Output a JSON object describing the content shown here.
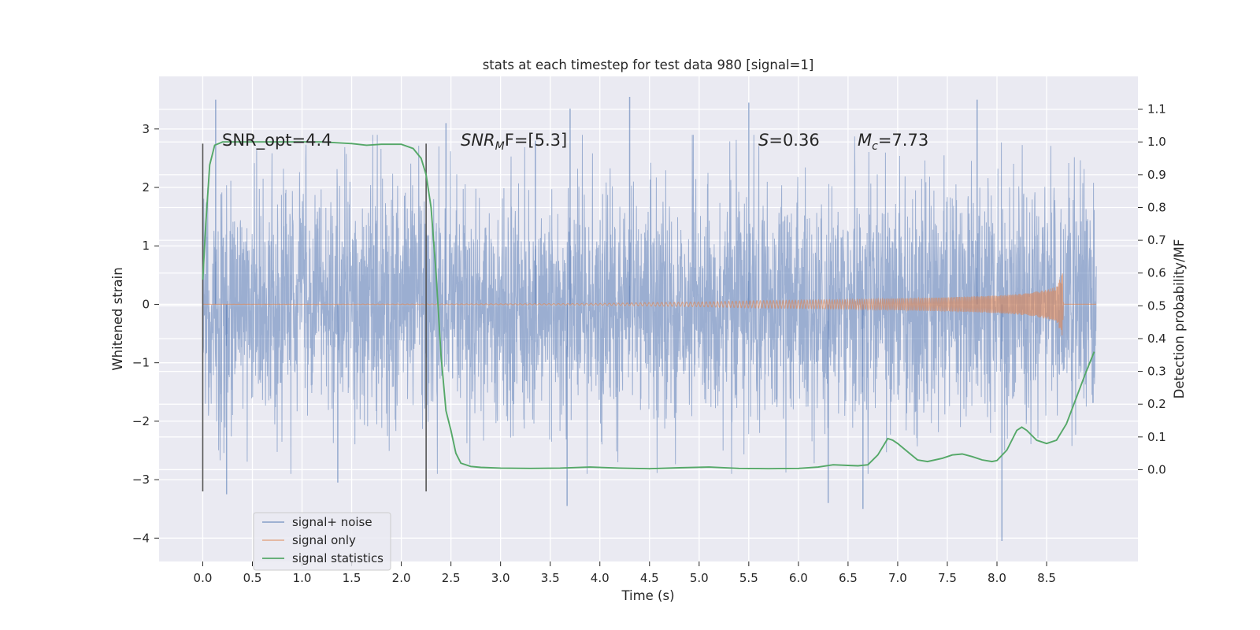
{
  "chart_data": {
    "type": "line",
    "title": "stats at each timestep for test data 980 [signal=1]",
    "xlabel": "Time (s)",
    "ylabel": "Whitened strain",
    "ylabel_right": "Detection probability/MF",
    "xlim": [
      -0.44,
      9.42
    ],
    "ylim": [
      -4.4,
      3.9
    ],
    "ylim_right": [
      -0.28,
      1.2
    ],
    "x_ticks": [
      0.0,
      0.5,
      1.0,
      1.5,
      2.0,
      2.5,
      3.0,
      3.5,
      4.0,
      4.5,
      5.0,
      5.5,
      6.0,
      6.5,
      7.0,
      7.5,
      8.0,
      8.5
    ],
    "x_tick_labels": [
      "0.0",
      "0.5",
      "1.0",
      "1.5",
      "2.0",
      "2.5",
      "3.0",
      "3.5",
      "4.0",
      "4.5",
      "5.0",
      "5.5",
      "6.0",
      "6.5",
      "7.0",
      "7.5",
      "8.0",
      "8.5"
    ],
    "y_ticks": [
      3,
      2,
      1,
      0,
      -1,
      -2,
      -3,
      -4
    ],
    "y_tick_labels": [
      "3",
      "2",
      "1",
      "0",
      "−1",
      "−2",
      "−3",
      "−4"
    ],
    "y_right_ticks": [
      1.1,
      1.0,
      0.9,
      0.8,
      0.7,
      0.6,
      0.5,
      0.4,
      0.3,
      0.2,
      0.1,
      0.0
    ],
    "y_right_tick_labels": [
      "1.1",
      "1.0",
      "0.9",
      "0.8",
      "0.7",
      "0.6",
      "0.5",
      "0.4",
      "0.3",
      "0.2",
      "0.1",
      "0.0"
    ],
    "grid": true,
    "legend_position": "lower-left",
    "annotations": {
      "snr_opt": "SNR_opt=4.4",
      "snr_mf_sym": "SNR",
      "snr_mf_sub": "M",
      "snr_mf_rest": "F=[5.3]",
      "s_sym": "S",
      "s_rest": "=0.36",
      "mc_sym": "M",
      "mc_sub": "c",
      "mc_rest": "=7.73"
    },
    "vertical_markers": [
      {
        "x": 0.0,
        "y_range": [
          -3.2,
          2.75
        ]
      },
      {
        "x": 2.25,
        "y_range": [
          -3.2,
          2.75
        ]
      }
    ],
    "series": [
      {
        "name": "signal+ noise",
        "color": "#4c72b0",
        "axis": "left",
        "x_range": [
          0.0,
          9.0
        ],
        "typical_amplitude": 1.25,
        "y_range": [
          -4.05,
          3.55
        ],
        "notable_spikes": [
          {
            "x": 0.13,
            "y": 3.5
          },
          {
            "x": 0.24,
            "y": -3.25
          },
          {
            "x": 1.36,
            "y": -3.05
          },
          {
            "x": 2.45,
            "y": 3.1
          },
          {
            "x": 3.35,
            "y": 2.8
          },
          {
            "x": 3.7,
            "y": 3.35
          },
          {
            "x": 3.67,
            "y": -3.45
          },
          {
            "x": 4.3,
            "y": 3.55
          },
          {
            "x": 5.5,
            "y": 3.45
          },
          {
            "x": 6.3,
            "y": -3.4
          },
          {
            "x": 6.65,
            "y": -3.5
          },
          {
            "x": 7.8,
            "y": 3.5
          },
          {
            "x": 8.05,
            "y": -4.05
          }
        ]
      },
      {
        "name": "signal only",
        "color": "#dd8452",
        "axis": "left",
        "x": [
          0.0,
          2.0,
          3.0,
          4.0,
          4.5,
          5.0,
          5.5,
          6.0,
          6.5,
          7.0,
          7.5,
          8.0,
          8.3,
          8.5,
          8.6,
          8.66,
          8.67,
          9.0
        ],
        "envelope": [
          0.0,
          0.005,
          0.008,
          0.015,
          0.03,
          0.04,
          0.06,
          0.07,
          0.08,
          0.1,
          0.12,
          0.15,
          0.19,
          0.25,
          0.3,
          0.55,
          0.0,
          0.0
        ]
      },
      {
        "name": "signal statistics",
        "color": "#55a868",
        "axis": "right",
        "x": [
          0.0,
          0.03,
          0.07,
          0.12,
          0.2,
          0.4,
          0.8,
          1.2,
          1.5,
          1.65,
          1.8,
          2.0,
          2.12,
          2.2,
          2.25,
          2.3,
          2.35,
          2.4,
          2.45,
          2.5,
          2.55,
          2.6,
          2.7,
          2.8,
          3.0,
          3.3,
          3.6,
          3.9,
          4.2,
          4.5,
          4.8,
          5.1,
          5.4,
          5.7,
          6.0,
          6.2,
          6.35,
          6.5,
          6.6,
          6.7,
          6.8,
          6.9,
          6.95,
          7.0,
          7.1,
          7.2,
          7.3,
          7.45,
          7.55,
          7.65,
          7.75,
          7.85,
          7.95,
          8.0,
          8.1,
          8.2,
          8.25,
          8.3,
          8.4,
          8.5,
          8.6,
          8.7,
          8.8,
          8.9,
          8.98
        ],
        "values": [
          0.58,
          0.75,
          0.93,
          0.99,
          1.0,
          1.0,
          1.0,
          1.0,
          0.995,
          0.99,
          0.993,
          0.993,
          0.98,
          0.95,
          0.9,
          0.8,
          0.6,
          0.35,
          0.18,
          0.12,
          0.05,
          0.02,
          0.01,
          0.007,
          0.005,
          0.004,
          0.005,
          0.008,
          0.005,
          0.003,
          0.006,
          0.008,
          0.004,
          0.003,
          0.004,
          0.008,
          0.015,
          0.013,
          0.012,
          0.015,
          0.045,
          0.095,
          0.09,
          0.08,
          0.055,
          0.03,
          0.025,
          0.035,
          0.045,
          0.048,
          0.04,
          0.03,
          0.025,
          0.028,
          0.06,
          0.12,
          0.13,
          0.12,
          0.09,
          0.08,
          0.09,
          0.14,
          0.22,
          0.3,
          0.36
        ]
      }
    ]
  }
}
